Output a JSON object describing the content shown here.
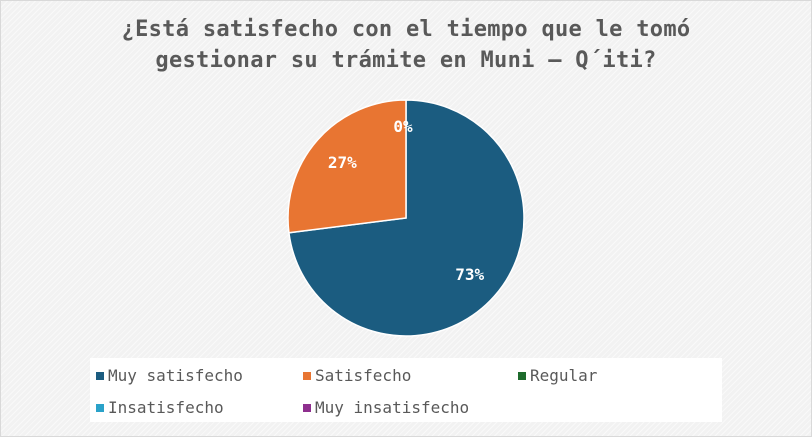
{
  "chart_data": {
    "type": "pie",
    "title_lines": [
      "¿Está satisfecho con el tiempo que le tomó",
      "gestionar su trámite en Muni – Q´iti?"
    ],
    "categories": [
      "Muy satisfecho",
      "Satisfecho",
      "Regular",
      "Insatisfecho",
      "Muy insatisfecho"
    ],
    "values": [
      73,
      27,
      0,
      0,
      0
    ],
    "data_labels": [
      "73%",
      "27%",
      "0%",
      "",
      ""
    ],
    "colors": [
      "#1b5c80",
      "#e87532",
      "#1e6b2c",
      "#2aa2c9",
      "#8e2f8e"
    ],
    "legend_position": "bottom"
  }
}
